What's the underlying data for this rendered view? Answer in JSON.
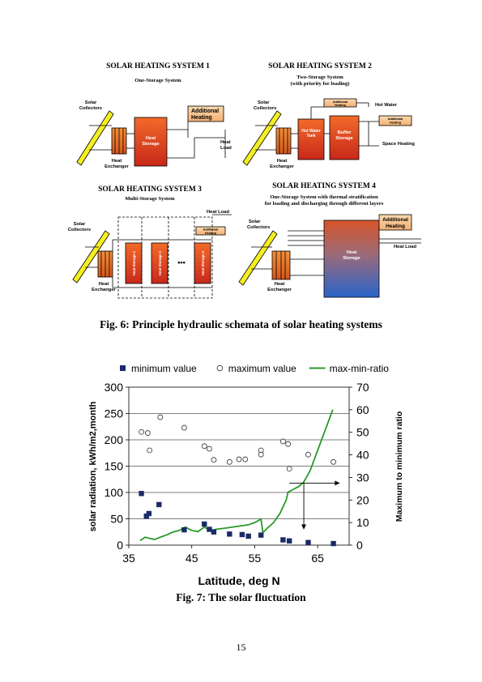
{
  "fig6": {
    "sys1": {
      "title": "SOLAR HEATING SYSTEM 1",
      "subtitle": "One-Storage System",
      "labels": {
        "collectors": [
          "Solar",
          "Collectors"
        ],
        "additional": [
          "Additional",
          "Heating"
        ],
        "storage": [
          "Heat",
          "Storage"
        ],
        "load": [
          "Heat",
          "Load"
        ],
        "exchanger": [
          "Heat",
          "Exchanger"
        ]
      }
    },
    "sys2": {
      "title": "SOLAR HEATING SYSTEM 2",
      "subtitle": [
        "Two-Storage System",
        "(with priority for loading)"
      ],
      "labels": {
        "collectors": [
          "Solar",
          "Collectors"
        ],
        "additional_top": [
          "Additional",
          "Heating"
        ],
        "hot_water": "Hot Water",
        "hw_tank": [
          "Hot Water",
          "Tank"
        ],
        "buffer": [
          "Buffer",
          "Storage"
        ],
        "additional_right": [
          "Additional",
          "Heating"
        ],
        "space_heating": "Space Heating",
        "exchanger": [
          "Heat",
          "Exchanger"
        ]
      }
    },
    "sys3": {
      "title": "SOLAR HEATING SYSTEM 3",
      "subtitle": "Multi-Storage System",
      "labels": {
        "collectors": [
          "Solar",
          "Collectors"
        ],
        "heat_load": "Heat Load",
        "additional": [
          "Additional",
          "Heating"
        ],
        "storage1": "Heat Storage 1",
        "storage2": "Heat Storage 2",
        "storagen": "Heat Storage n",
        "dots": "•••",
        "exchanger": [
          "Heat",
          "Exchanger"
        ]
      }
    },
    "sys4": {
      "title": "SOLAR HEATING SYSTEM 4",
      "subtitle": [
        "One-Storage System with thermal stratification",
        "for loading and discharging through different layers"
      ],
      "labels": {
        "collectors": [
          "Solar",
          "Collectors"
        ],
        "additional": [
          "Additional",
          "Heating"
        ],
        "heat_load": "Heat Load",
        "storage": [
          "Heat",
          "Storage"
        ],
        "exchanger": [
          "Heat",
          "Exchanger"
        ]
      }
    },
    "caption": "Fig. 6: Principle hydraulic schemata of solar heating systems"
  },
  "chart_data": {
    "type": "scatter",
    "xlabel": "Latitude, deg N",
    "ylabel": "solar radiation, kWh/m2,month",
    "y2label": "Maximum to minimum ratio",
    "xlim": [
      35,
      70
    ],
    "ylim": [
      0,
      300
    ],
    "y2lim": [
      0,
      70
    ],
    "xticks": [
      "35",
      "45",
      "55",
      "65"
    ],
    "xtick_values": [
      35,
      45,
      55,
      65
    ],
    "yticks": [
      "0",
      "50",
      "100",
      "150",
      "200",
      "250",
      "300"
    ],
    "y2ticks": [
      "0",
      "10",
      "20",
      "30",
      "40",
      "50",
      "60",
      "70"
    ],
    "grid": "horizontal",
    "legend_position": "top",
    "series": [
      {
        "name": "minimum value",
        "kind": "square-filled",
        "color": "#1a2a66",
        "points": [
          [
            37,
            98
          ],
          [
            37.8,
            55
          ],
          [
            38.2,
            60
          ],
          [
            39.8,
            77
          ],
          [
            43.8,
            29
          ],
          [
            47,
            40
          ],
          [
            47.8,
            30
          ],
          [
            48.5,
            25
          ],
          [
            51,
            21
          ],
          [
            53,
            20
          ],
          [
            54,
            17
          ],
          [
            56,
            19
          ],
          [
            59.5,
            10
          ],
          [
            60.5,
            8
          ],
          [
            63.5,
            5
          ],
          [
            67.5,
            3
          ]
        ]
      },
      {
        "name": "maximum value",
        "kind": "circle-open",
        "color": "#333333",
        "points": [
          [
            37,
            215
          ],
          [
            38,
            213
          ],
          [
            38.3,
            180
          ],
          [
            40,
            243
          ],
          [
            43.8,
            223
          ],
          [
            47,
            188
          ],
          [
            47.8,
            183
          ],
          [
            48.5,
            162
          ],
          [
            51,
            158
          ],
          [
            52.5,
            163
          ],
          [
            53.5,
            163
          ],
          [
            56,
            180
          ],
          [
            56,
            172
          ],
          [
            59.5,
            197
          ],
          [
            60.3,
            192
          ],
          [
            60.5,
            145
          ],
          [
            63.5,
            172
          ],
          [
            67.5,
            158
          ]
        ]
      },
      {
        "name": "max-min-ratio",
        "kind": "line",
        "color": "#2a9a2a",
        "axis": "y2",
        "points": [
          [
            36.8,
            2
          ],
          [
            37.6,
            3.5
          ],
          [
            38.3,
            3
          ],
          [
            39.1,
            2.5
          ],
          [
            40,
            3.5
          ],
          [
            41,
            4.5
          ],
          [
            42,
            5.8
          ],
          [
            43,
            6.5
          ],
          [
            44,
            8
          ],
          [
            45,
            6.5
          ],
          [
            46,
            6
          ],
          [
            47,
            8
          ],
          [
            47.6,
            7
          ],
          [
            48.2,
            6.5
          ],
          [
            49,
            7.1
          ],
          [
            50,
            7.4
          ],
          [
            51,
            7.8
          ],
          [
            52,
            8.2
          ],
          [
            53,
            8.6
          ],
          [
            54,
            9
          ],
          [
            55,
            10
          ],
          [
            56,
            11.5
          ],
          [
            56.3,
            5.5
          ],
          [
            57,
            7.5
          ],
          [
            58,
            10
          ],
          [
            59,
            14
          ],
          [
            60,
            20
          ],
          [
            60.3,
            23.5
          ],
          [
            61,
            24.5
          ],
          [
            62,
            26
          ],
          [
            62.8,
            28
          ],
          [
            63.8,
            33
          ],
          [
            65,
            42
          ],
          [
            66.2,
            51
          ],
          [
            67.4,
            60
          ]
        ]
      }
    ],
    "annotations": [
      {
        "type": "arrow",
        "from": [
          60.5,
          27.5
        ],
        "to": [
          68.5,
          27.5
        ]
      },
      {
        "type": "arrow",
        "from": [
          62.8,
          27.5
        ],
        "to": [
          62.8,
          7
        ]
      }
    ]
  },
  "fig7": {
    "caption": "Fig. 7: The solar fluctuation"
  },
  "page_number": "15"
}
